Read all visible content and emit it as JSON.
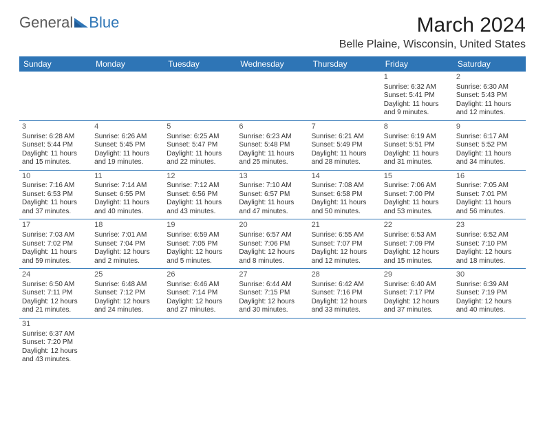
{
  "logo": {
    "text1": "General",
    "text2": "Blue"
  },
  "title": "March 2024",
  "location": "Belle Plaine, Wisconsin, United States",
  "colors": {
    "headerBg": "#2e75b6",
    "headerText": "#ffffff",
    "border": "#2e75b6",
    "text": "#333333"
  },
  "weekdays": [
    "Sunday",
    "Monday",
    "Tuesday",
    "Wednesday",
    "Thursday",
    "Friday",
    "Saturday"
  ],
  "weeks": [
    [
      null,
      null,
      null,
      null,
      null,
      {
        "n": "1",
        "sr": "Sunrise: 6:32 AM",
        "ss": "Sunset: 5:41 PM",
        "d1": "Daylight: 11 hours",
        "d2": "and 9 minutes."
      },
      {
        "n": "2",
        "sr": "Sunrise: 6:30 AM",
        "ss": "Sunset: 5:43 PM",
        "d1": "Daylight: 11 hours",
        "d2": "and 12 minutes."
      }
    ],
    [
      {
        "n": "3",
        "sr": "Sunrise: 6:28 AM",
        "ss": "Sunset: 5:44 PM",
        "d1": "Daylight: 11 hours",
        "d2": "and 15 minutes."
      },
      {
        "n": "4",
        "sr": "Sunrise: 6:26 AM",
        "ss": "Sunset: 5:45 PM",
        "d1": "Daylight: 11 hours",
        "d2": "and 19 minutes."
      },
      {
        "n": "5",
        "sr": "Sunrise: 6:25 AM",
        "ss": "Sunset: 5:47 PM",
        "d1": "Daylight: 11 hours",
        "d2": "and 22 minutes."
      },
      {
        "n": "6",
        "sr": "Sunrise: 6:23 AM",
        "ss": "Sunset: 5:48 PM",
        "d1": "Daylight: 11 hours",
        "d2": "and 25 minutes."
      },
      {
        "n": "7",
        "sr": "Sunrise: 6:21 AM",
        "ss": "Sunset: 5:49 PM",
        "d1": "Daylight: 11 hours",
        "d2": "and 28 minutes."
      },
      {
        "n": "8",
        "sr": "Sunrise: 6:19 AM",
        "ss": "Sunset: 5:51 PM",
        "d1": "Daylight: 11 hours",
        "d2": "and 31 minutes."
      },
      {
        "n": "9",
        "sr": "Sunrise: 6:17 AM",
        "ss": "Sunset: 5:52 PM",
        "d1": "Daylight: 11 hours",
        "d2": "and 34 minutes."
      }
    ],
    [
      {
        "n": "10",
        "sr": "Sunrise: 7:16 AM",
        "ss": "Sunset: 6:53 PM",
        "d1": "Daylight: 11 hours",
        "d2": "and 37 minutes."
      },
      {
        "n": "11",
        "sr": "Sunrise: 7:14 AM",
        "ss": "Sunset: 6:55 PM",
        "d1": "Daylight: 11 hours",
        "d2": "and 40 minutes."
      },
      {
        "n": "12",
        "sr": "Sunrise: 7:12 AM",
        "ss": "Sunset: 6:56 PM",
        "d1": "Daylight: 11 hours",
        "d2": "and 43 minutes."
      },
      {
        "n": "13",
        "sr": "Sunrise: 7:10 AM",
        "ss": "Sunset: 6:57 PM",
        "d1": "Daylight: 11 hours",
        "d2": "and 47 minutes."
      },
      {
        "n": "14",
        "sr": "Sunrise: 7:08 AM",
        "ss": "Sunset: 6:58 PM",
        "d1": "Daylight: 11 hours",
        "d2": "and 50 minutes."
      },
      {
        "n": "15",
        "sr": "Sunrise: 7:06 AM",
        "ss": "Sunset: 7:00 PM",
        "d1": "Daylight: 11 hours",
        "d2": "and 53 minutes."
      },
      {
        "n": "16",
        "sr": "Sunrise: 7:05 AM",
        "ss": "Sunset: 7:01 PM",
        "d1": "Daylight: 11 hours",
        "d2": "and 56 minutes."
      }
    ],
    [
      {
        "n": "17",
        "sr": "Sunrise: 7:03 AM",
        "ss": "Sunset: 7:02 PM",
        "d1": "Daylight: 11 hours",
        "d2": "and 59 minutes."
      },
      {
        "n": "18",
        "sr": "Sunrise: 7:01 AM",
        "ss": "Sunset: 7:04 PM",
        "d1": "Daylight: 12 hours",
        "d2": "and 2 minutes."
      },
      {
        "n": "19",
        "sr": "Sunrise: 6:59 AM",
        "ss": "Sunset: 7:05 PM",
        "d1": "Daylight: 12 hours",
        "d2": "and 5 minutes."
      },
      {
        "n": "20",
        "sr": "Sunrise: 6:57 AM",
        "ss": "Sunset: 7:06 PM",
        "d1": "Daylight: 12 hours",
        "d2": "and 8 minutes."
      },
      {
        "n": "21",
        "sr": "Sunrise: 6:55 AM",
        "ss": "Sunset: 7:07 PM",
        "d1": "Daylight: 12 hours",
        "d2": "and 12 minutes."
      },
      {
        "n": "22",
        "sr": "Sunrise: 6:53 AM",
        "ss": "Sunset: 7:09 PM",
        "d1": "Daylight: 12 hours",
        "d2": "and 15 minutes."
      },
      {
        "n": "23",
        "sr": "Sunrise: 6:52 AM",
        "ss": "Sunset: 7:10 PM",
        "d1": "Daylight: 12 hours",
        "d2": "and 18 minutes."
      }
    ],
    [
      {
        "n": "24",
        "sr": "Sunrise: 6:50 AM",
        "ss": "Sunset: 7:11 PM",
        "d1": "Daylight: 12 hours",
        "d2": "and 21 minutes."
      },
      {
        "n": "25",
        "sr": "Sunrise: 6:48 AM",
        "ss": "Sunset: 7:12 PM",
        "d1": "Daylight: 12 hours",
        "d2": "and 24 minutes."
      },
      {
        "n": "26",
        "sr": "Sunrise: 6:46 AM",
        "ss": "Sunset: 7:14 PM",
        "d1": "Daylight: 12 hours",
        "d2": "and 27 minutes."
      },
      {
        "n": "27",
        "sr": "Sunrise: 6:44 AM",
        "ss": "Sunset: 7:15 PM",
        "d1": "Daylight: 12 hours",
        "d2": "and 30 minutes."
      },
      {
        "n": "28",
        "sr": "Sunrise: 6:42 AM",
        "ss": "Sunset: 7:16 PM",
        "d1": "Daylight: 12 hours",
        "d2": "and 33 minutes."
      },
      {
        "n": "29",
        "sr": "Sunrise: 6:40 AM",
        "ss": "Sunset: 7:17 PM",
        "d1": "Daylight: 12 hours",
        "d2": "and 37 minutes."
      },
      {
        "n": "30",
        "sr": "Sunrise: 6:39 AM",
        "ss": "Sunset: 7:19 PM",
        "d1": "Daylight: 12 hours",
        "d2": "and 40 minutes."
      }
    ],
    [
      {
        "n": "31",
        "sr": "Sunrise: 6:37 AM",
        "ss": "Sunset: 7:20 PM",
        "d1": "Daylight: 12 hours",
        "d2": "and 43 minutes."
      },
      null,
      null,
      null,
      null,
      null,
      null
    ]
  ]
}
